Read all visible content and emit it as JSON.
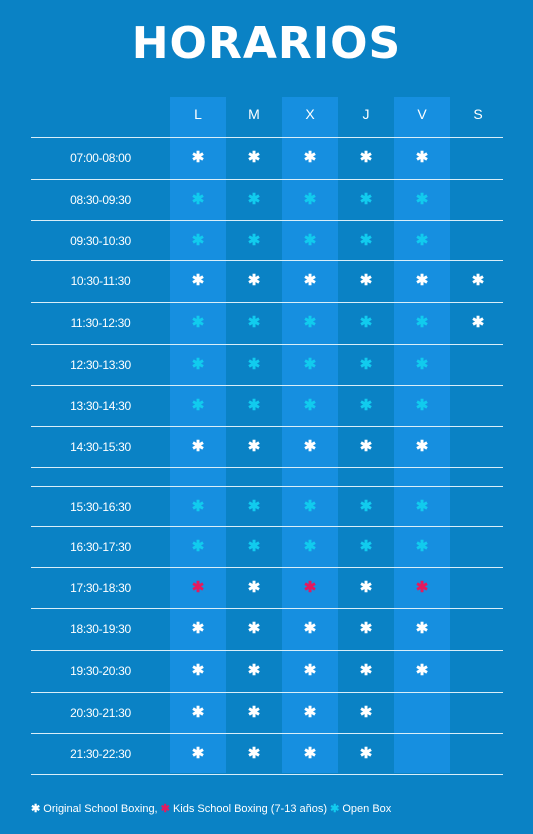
{
  "title": "HORARIOS",
  "days": [
    "L",
    "M",
    "X",
    "J",
    "V",
    "S"
  ],
  "colors": {
    "white": "#ffffff",
    "cyan": "#11cbee",
    "pink": "#e5195f",
    "background": "#0a82c5",
    "highlight_column": "#168fe0"
  },
  "schedule": [
    {
      "time": "07:00-08:00",
      "slots": [
        "w",
        "w",
        "w",
        "w",
        "w",
        ""
      ]
    },
    {
      "time": "08:30-09:30",
      "slots": [
        "c",
        "c",
        "c",
        "c",
        "c",
        ""
      ]
    },
    {
      "time": "09:30-10:30",
      "slots": [
        "c",
        "c",
        "c",
        "c",
        "c",
        ""
      ]
    },
    {
      "time": "10:30-11:30",
      "slots": [
        "w",
        "w",
        "w",
        "w",
        "w",
        "w"
      ]
    },
    {
      "time": "11:30-12:30",
      "slots": [
        "c",
        "c",
        "c",
        "c",
        "c",
        "w"
      ]
    },
    {
      "time": "12:30-13:30",
      "slots": [
        "c",
        "c",
        "c",
        "c",
        "c",
        ""
      ]
    },
    {
      "time": "13:30-14:30",
      "slots": [
        "c",
        "c",
        "c",
        "c",
        "c",
        ""
      ]
    },
    {
      "time": "14:30-15:30",
      "slots": [
        "w",
        "w",
        "w",
        "w",
        "w",
        ""
      ]
    },
    {
      "time": "15:30-16:30",
      "slots": [
        "c",
        "c",
        "c",
        "c",
        "c",
        ""
      ]
    },
    {
      "time": "16:30-17:30",
      "slots": [
        "c",
        "c",
        "c",
        "c",
        "c",
        ""
      ]
    },
    {
      "time": "17:30-18:30",
      "slots": [
        "p",
        "w",
        "p",
        "w",
        "p",
        ""
      ]
    },
    {
      "time": "18:30-19:30",
      "slots": [
        "w",
        "w",
        "w",
        "w",
        "w",
        ""
      ]
    },
    {
      "time": "19:30-20:30",
      "slots": [
        "w",
        "w",
        "w",
        "w",
        "w",
        ""
      ]
    },
    {
      "time": "20:30-21:30",
      "slots": [
        "w",
        "w",
        "w",
        "w",
        "",
        ""
      ]
    },
    {
      "time": "21:30-22:30",
      "slots": [
        "w",
        "w",
        "w",
        "w",
        "",
        ""
      ]
    }
  ],
  "legend": [
    {
      "symbol": "✱",
      "color": "#ffffff",
      "label": "Original School Boxing,"
    },
    {
      "symbol": "✱",
      "color": "#e5195f",
      "label": "Kids School Boxing (7-13 años)"
    },
    {
      "symbol": "✱",
      "color": "#11cbee",
      "label": "Open Box"
    }
  ]
}
